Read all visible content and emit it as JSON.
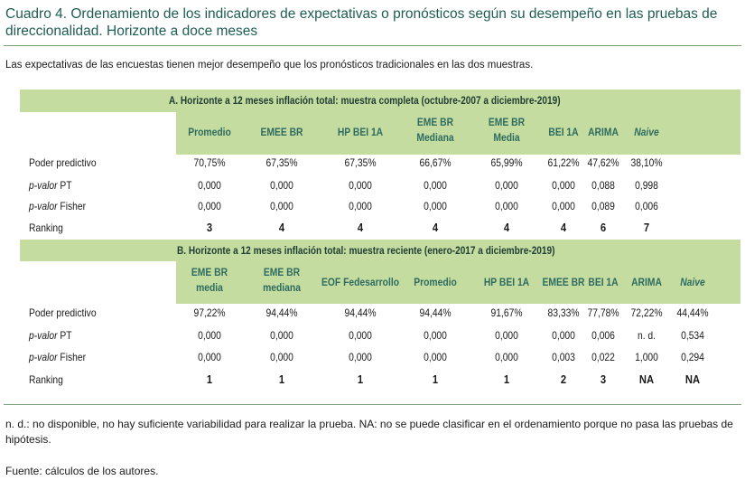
{
  "title": "Cuadro 4. Ordenamiento de los indicadores de expectativas o pronósticos según su desempeño en las pruebas de direccionalidad. Horizonte a doce meses",
  "subtitle": "Las expectativas de las encuestas tienen mejor desempeño que los pronósticos tradicionales en las dos muestras.",
  "sectionA": {
    "title": "A. Horizonte a 12 meses inflación total: muestra completa (octubre-2007 a diciembre-2019)",
    "headers": [
      "Promedio",
      "EMEE BR",
      "HP BEI 1A",
      "EME BR\nMediana",
      "EME BR\nMedia",
      "BEI 1A",
      "ARIMA",
      "Naive"
    ],
    "rows": {
      "poder": {
        "label": "Poder predictivo",
        "values": [
          "70,75%",
          "67,35%",
          "67,35%",
          "66,67%",
          "65,99%",
          "61,22%",
          "47,62%",
          "38,10%"
        ]
      },
      "pt": {
        "label_it": "p-valor",
        "label_rest": " PT",
        "values": [
          "0,000",
          "0,000",
          "0,000",
          "0,000",
          "0,000",
          "0,000",
          "0,088",
          "0,998"
        ]
      },
      "fisher": {
        "label_it": "p-valor",
        "label_rest": " Fisher",
        "values": [
          "0,000",
          "0,000",
          "0,000",
          "0,000",
          "0,000",
          "0,000",
          "0,089",
          "0,006"
        ]
      },
      "ranking": {
        "label": "Ranking",
        "values": [
          "3",
          "4",
          "4",
          "4",
          "4",
          "4",
          "6",
          "7"
        ]
      }
    }
  },
  "sectionB": {
    "title": "B. Horizonte a 12 meses inflación total: muestra reciente (enero-2017 a diciembre-2019)",
    "headers": [
      "EME BR\nmedia",
      "EME BR\nmediana",
      "EOF Fedesarrollo",
      "Promedio",
      "HP BEI 1A",
      "EMEE BR",
      "BEI 1A",
      "ARIMA",
      "Naive"
    ],
    "rows": {
      "poder": {
        "label": "Poder predictivo",
        "values": [
          "97,22%",
          "94,44%",
          "94,44%",
          "94,44%",
          "91,67%",
          "83,33%",
          "77,78%",
          "72,22%",
          "44,44%"
        ]
      },
      "pt": {
        "label_it": "p-valor",
        "label_rest": " PT",
        "values": [
          "0,000",
          "0,000",
          "0,000",
          "0,000",
          "0,000",
          "0,000",
          "0,006",
          "n. d.",
          "0,534"
        ]
      },
      "fisher": {
        "label_it": "p-valor",
        "label_rest": " Fisher",
        "values": [
          "0,000",
          "0,000",
          "0,000",
          "0,000",
          "0,000",
          "0,003",
          "0,022",
          "1,000",
          "0,294"
        ]
      },
      "ranking": {
        "label": "Ranking",
        "values": [
          "1",
          "1",
          "1",
          "1",
          "1",
          "2",
          "3",
          "NA",
          "NA"
        ]
      }
    }
  },
  "footnote": "n. d.: no disponible, no hay suficiente variabilidad para realizar la prueba. NA: no se puede clasificar en el ordenamiento porque no pasa las pruebas de hipótesis.",
  "source": "Fuente: cálculos de los autores."
}
